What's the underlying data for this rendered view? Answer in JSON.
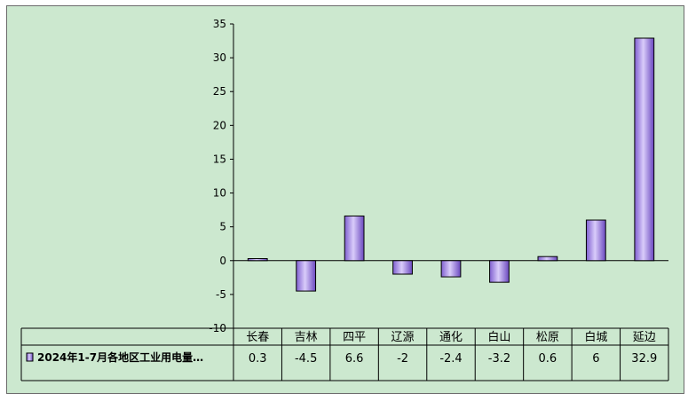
{
  "chart_data": {
    "type": "bar",
    "categories": [
      "长春",
      "吉林",
      "四平",
      "辽源",
      "通化",
      "白山",
      "松原",
      "白城",
      "延边"
    ],
    "series": [
      {
        "name": "2024年1-7月各地区工业用电量…",
        "values": [
          0.3,
          -4.5,
          6.6,
          -2,
          -2.4,
          -3.2,
          0.6,
          6,
          32.9
        ],
        "value_labels": [
          "0.3",
          "-4.5",
          "6.6",
          "-2",
          "-2.4",
          "-3.2",
          "0.6",
          "6",
          "32.9"
        ]
      }
    ],
    "yticks": [
      35,
      30,
      25,
      20,
      15,
      10,
      5,
      0,
      -5,
      -10
    ],
    "ylim": [
      -10,
      35
    ],
    "grid": false,
    "legend": "data table",
    "colors": {
      "bar": "#a98ae6",
      "bar_edge": "#000000",
      "background": "#cce8cf"
    }
  }
}
